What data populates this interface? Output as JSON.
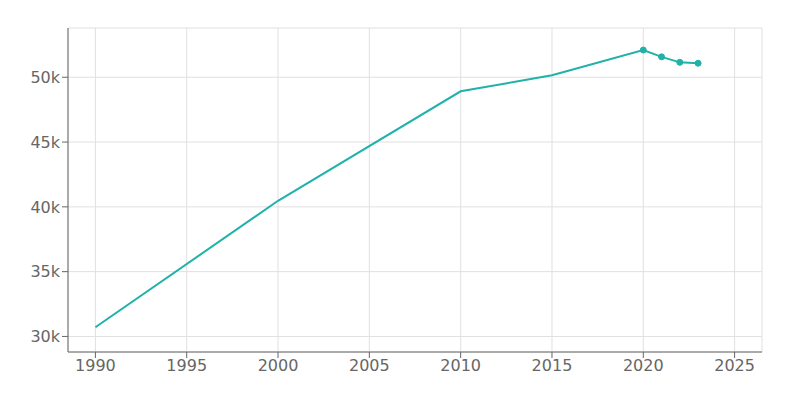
{
  "chart_data": {
    "type": "line",
    "x": [
      1990,
      2000,
      2010,
      2015,
      2020,
      2021,
      2022,
      2023
    ],
    "series": [
      {
        "type": "line",
        "color": "#20b2aa",
        "marker": "none",
        "values": [
          30707,
          40468,
          48914,
          50148,
          52100,
          51575,
          51148,
          51082
        ]
      },
      {
        "type": "scatter",
        "color": "#20b2aa",
        "marker": "circle",
        "values": [
          null,
          null,
          null,
          null,
          52100,
          51575,
          51148,
          51082
        ]
      }
    ],
    "xlim": [
      1988.5,
      2026.5
    ],
    "ylim": [
      28800,
      53800
    ],
    "xticks": [
      1990,
      1995,
      2000,
      2005,
      2010,
      2015,
      2020,
      2025
    ],
    "yticks": [
      {
        "value": 30000,
        "label": "30k"
      },
      {
        "value": 35000,
        "label": "35k"
      },
      {
        "value": 40000,
        "label": "40k"
      },
      {
        "value": 45000,
        "label": "45k"
      },
      {
        "value": 50000,
        "label": "50k"
      }
    ],
    "grid": true
  }
}
